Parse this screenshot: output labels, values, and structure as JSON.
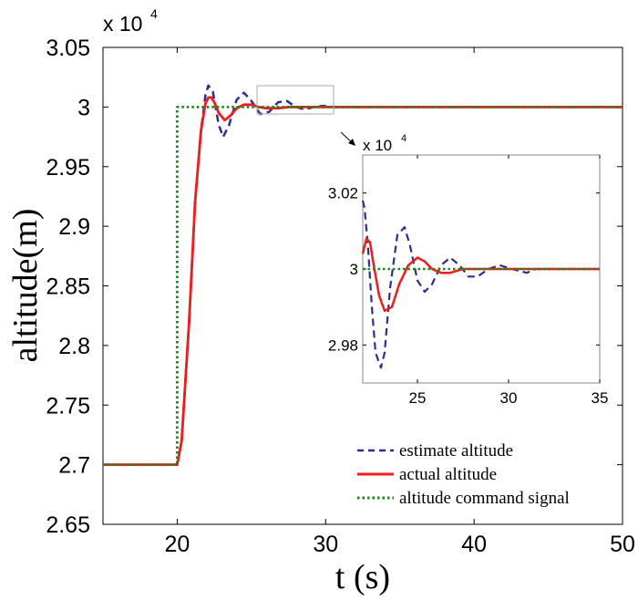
{
  "chart_data": [
    {
      "type": "line",
      "xlabel": "t (s)",
      "ylabel": "altitude(m)",
      "xlim": [
        15,
        50
      ],
      "ylim": [
        2.65,
        3.05
      ],
      "x_ticks": [
        "20",
        "30",
        "40",
        "50"
      ],
      "y_ticks": [
        "2.65",
        "2.7",
        "2.75",
        "2.8",
        "2.85",
        "2.9",
        "2.95",
        "3",
        "3.05"
      ],
      "y_multiplier": "x 10",
      "y_multiplier_exp": "4",
      "legend_position": "bottom-right",
      "series": [
        {
          "name": "estimate altitude",
          "color": "#2e2e8f",
          "style": "dashed",
          "x": [
            15,
            20,
            20.3,
            20.8,
            21.2,
            21.6,
            21.9,
            22.1,
            22.4,
            22.8,
            23.1,
            23.5,
            24.0,
            24.5,
            25.0,
            25.6,
            26.2,
            26.8,
            27.4,
            28.0,
            28.6,
            29.2,
            29.8,
            30.6,
            31.5,
            33,
            35,
            40,
            50
          ],
          "y": [
            2.7,
            2.7,
            2.72,
            2.82,
            2.92,
            2.98,
            3.01,
            3.018,
            3.013,
            2.985,
            2.975,
            2.985,
            3.006,
            3.012,
            3.005,
            2.994,
            2.996,
            3.004,
            3.005,
            3.0,
            2.998,
            3.0,
            3.001,
            3.0,
            3.0,
            3.0,
            3.0,
            3.0,
            3.0
          ]
        },
        {
          "name": "actual altitude",
          "color": "#ee1c1c",
          "style": "solid",
          "x": [
            15,
            20,
            20.3,
            20.8,
            21.2,
            21.6,
            21.9,
            22.1,
            22.3,
            22.5,
            22.8,
            23.2,
            23.6,
            24.0,
            24.5,
            25.0,
            25.5,
            26.0,
            26.8,
            27.5,
            28.5,
            30,
            35,
            40,
            50
          ],
          "y": [
            2.7,
            2.7,
            2.72,
            2.82,
            2.92,
            2.98,
            3.003,
            3.008,
            3.008,
            3.004,
            2.995,
            2.989,
            2.993,
            2.999,
            3.002,
            3.002,
            3.0,
            2.999,
            2.999,
            3.0,
            3.0,
            3.0,
            3.0,
            3.0,
            3.0
          ]
        },
        {
          "name": "altitude command signal",
          "color": "#1a8a1a",
          "style": "dotted",
          "x": [
            15,
            20,
            20,
            50
          ],
          "y": [
            2.7,
            2.7,
            3.0,
            3.0
          ]
        }
      ]
    },
    {
      "type": "line",
      "inset": true,
      "xlim": [
        22,
        35
      ],
      "ylim": [
        2.97,
        3.03
      ],
      "x_ticks": [
        "25",
        "30",
        "35"
      ],
      "y_ticks": [
        "2.98",
        "3",
        "3.02"
      ],
      "y_multiplier": "x 10",
      "y_multiplier_exp": "4",
      "series": [
        {
          "name": "estimate altitude",
          "color": "#2e2e8f",
          "style": "dashed",
          "x": [
            22,
            22.1,
            22.3,
            22.5,
            22.7,
            23.0,
            23.2,
            23.5,
            23.9,
            24.3,
            24.6,
            25.0,
            25.4,
            25.8,
            26.3,
            26.8,
            27.3,
            27.8,
            28.3,
            28.9,
            29.5,
            30.2,
            31.0,
            31.5,
            32.2,
            33,
            35
          ],
          "y": [
            3.018,
            3.016,
            3.005,
            2.99,
            2.978,
            2.974,
            2.978,
            2.995,
            3.009,
            3.011,
            3.006,
            2.997,
            2.994,
            2.996,
            3.001,
            3.003,
            3.001,
            2.998,
            2.998,
            3.0,
            3.001,
            3.0,
            2.999,
            3.0,
            3.0,
            3.0,
            3.0
          ]
        },
        {
          "name": "actual altitude",
          "color": "#ee1c1c",
          "style": "solid",
          "x": [
            22,
            22.2,
            22.4,
            22.6,
            22.9,
            23.2,
            23.6,
            24.0,
            24.5,
            25.0,
            25.4,
            25.8,
            26.3,
            26.8,
            27.5,
            28.5,
            30,
            32,
            35
          ],
          "y": [
            3.004,
            3.008,
            3.007,
            3.001,
            2.993,
            2.989,
            2.99,
            2.996,
            3.001,
            3.003,
            3.002,
            3.0,
            2.999,
            2.999,
            3.0,
            3.0,
            3.0,
            3.0,
            3.0
          ]
        },
        {
          "name": "altitude command signal",
          "color": "#1a8a1a",
          "style": "dotted",
          "x": [
            22,
            35
          ],
          "y": [
            3.0,
            3.0
          ]
        }
      ]
    }
  ]
}
